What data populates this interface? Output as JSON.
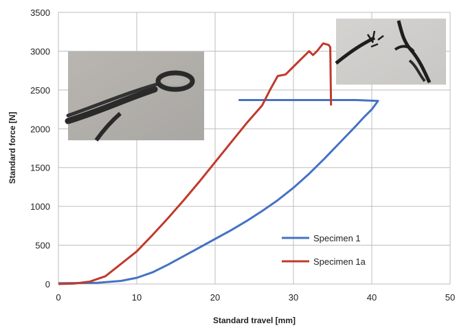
{
  "chart_data": {
    "type": "line",
    "title": "",
    "xlabel": "Standard travel [mm]",
    "ylabel": "Standard force [N]",
    "xlim": [
      0,
      50
    ],
    "ylim": [
      0,
      3500
    ],
    "x_ticks": [
      0,
      10,
      20,
      30,
      40,
      50
    ],
    "y_ticks": [
      0,
      500,
      1000,
      1500,
      2000,
      2500,
      3000,
      3500
    ],
    "grid": true,
    "legend_position": "lower-right",
    "series": [
      {
        "name": "Specimen 1",
        "color": "#4472c4",
        "points": [
          [
            0,
            10
          ],
          [
            5,
            15
          ],
          [
            8,
            40
          ],
          [
            10,
            80
          ],
          [
            12,
            150
          ],
          [
            14,
            250
          ],
          [
            16,
            360
          ],
          [
            18,
            470
          ],
          [
            20,
            580
          ],
          [
            22,
            690
          ],
          [
            24,
            810
          ],
          [
            26,
            940
          ],
          [
            28,
            1080
          ],
          [
            30,
            1240
          ],
          [
            32,
            1420
          ],
          [
            34,
            1620
          ],
          [
            36,
            1830
          ],
          [
            38,
            2040
          ],
          [
            39,
            2150
          ],
          [
            40,
            2250
          ],
          [
            40.8,
            2360
          ],
          [
            38,
            2370
          ],
          [
            23,
            2370
          ]
        ]
      },
      {
        "name": "Specimen 1a",
        "color": "#c0392b",
        "points": [
          [
            0,
            0
          ],
          [
            2,
            5
          ],
          [
            4,
            30
          ],
          [
            6,
            100
          ],
          [
            8,
            260
          ],
          [
            10,
            420
          ],
          [
            12,
            630
          ],
          [
            14,
            850
          ],
          [
            16,
            1080
          ],
          [
            18,
            1320
          ],
          [
            20,
            1570
          ],
          [
            22,
            1820
          ],
          [
            24,
            2070
          ],
          [
            26,
            2300
          ],
          [
            27,
            2500
          ],
          [
            28,
            2680
          ],
          [
            29,
            2700
          ],
          [
            30,
            2800
          ],
          [
            31,
            2900
          ],
          [
            32,
            3000
          ],
          [
            32.5,
            2950
          ],
          [
            33,
            3000
          ],
          [
            33.8,
            3100
          ],
          [
            34.5,
            3080
          ],
          [
            34.7,
            3050
          ],
          [
            34.8,
            2300
          ]
        ]
      }
    ],
    "images": [
      {
        "name": "specimen-loop-photo",
        "description": "photo"
      },
      {
        "name": "broken-specimen-photo",
        "description": "photo"
      }
    ]
  }
}
